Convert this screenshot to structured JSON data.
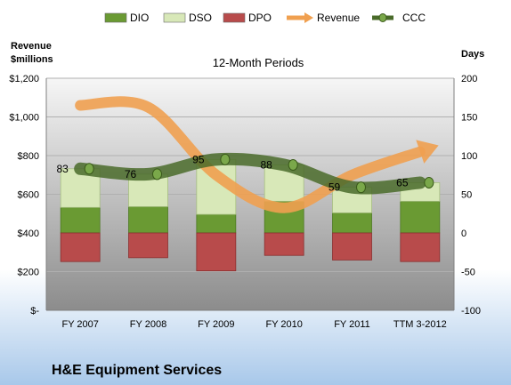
{
  "chart_data": {
    "type": "bar",
    "title": "12-Month Periods",
    "company": "H&E Equipment Services",
    "left_axis_title": [
      "Revenue",
      "$millions"
    ],
    "right_axis_title": "Days",
    "categories": [
      "FY 2007",
      "FY 2008",
      "FY 2009",
      "FY 2010",
      "FY 2011",
      "TTM 3-2012"
    ],
    "left_ticks": [
      "$1,200",
      "$1,000",
      "$800",
      "$600",
      "$400",
      "$200",
      "$-"
    ],
    "right_ticks": [
      "200",
      "150",
      "100",
      "50",
      "0",
      "-50",
      "-100"
    ],
    "left_ylim": [
      0,
      1200
    ],
    "right_ylim": [
      -100,
      200
    ],
    "legend": {
      "position": "top",
      "items": [
        {
          "name": "DIO",
          "kind": "bar",
          "color": "#6a9a33"
        },
        {
          "name": "DSO",
          "kind": "bar",
          "color": "#d8e8b8"
        },
        {
          "name": "DPO",
          "kind": "bar",
          "color": "#b84b4b"
        },
        {
          "name": "Revenue",
          "kind": "line",
          "color": "#f0a050"
        },
        {
          "name": "CCC",
          "kind": "line",
          "color": "#4a6b2a"
        }
      ]
    },
    "series": [
      {
        "name": "DIO",
        "axis": "right",
        "values": [
          33,
          34,
          24,
          41,
          26,
          41
        ]
      },
      {
        "name": "DSO",
        "axis": "right",
        "values": [
          50,
          42,
          71,
          47,
          33,
          24
        ]
      },
      {
        "name": "DPO",
        "axis": "right",
        "values": [
          -37,
          -32,
          -49,
          -29,
          -35,
          -37
        ]
      },
      {
        "name": "Revenue",
        "axis": "left",
        "values": [
          1060,
          1050,
          700,
          530,
          700,
          820
        ]
      },
      {
        "name": "CCC",
        "axis": "right",
        "values": [
          83,
          76,
          95,
          88,
          59,
          65
        ]
      }
    ],
    "ccc_labels": [
      "83",
      "76",
      "95",
      "88",
      "59",
      "65"
    ]
  }
}
